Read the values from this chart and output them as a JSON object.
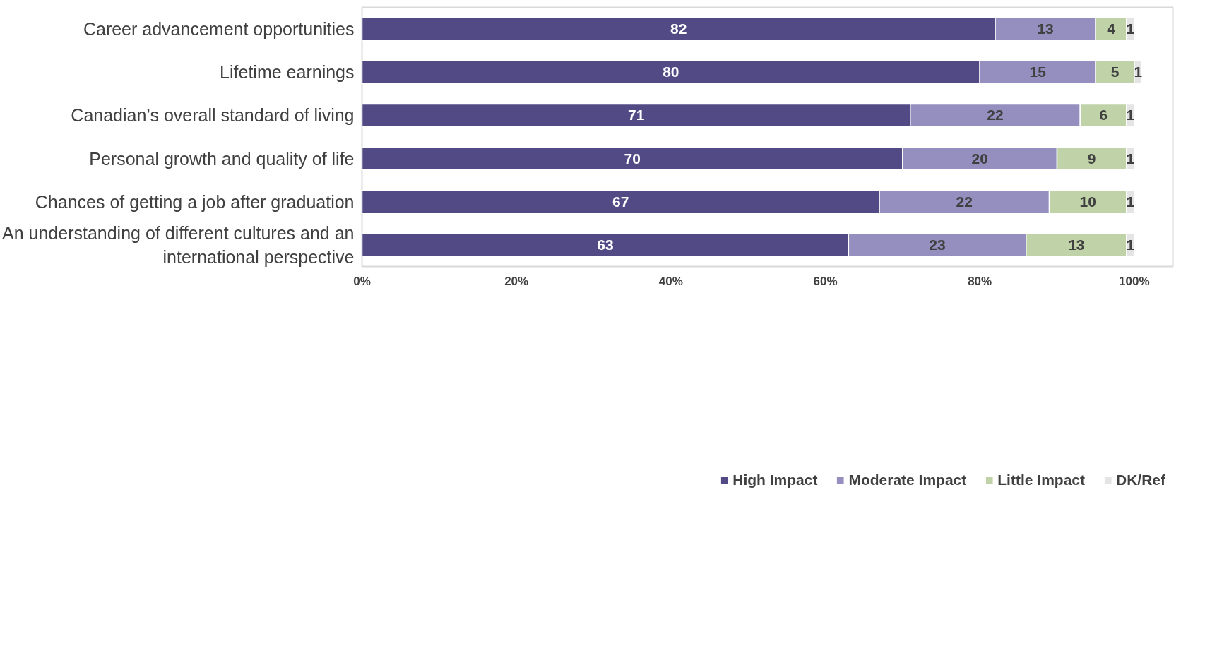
{
  "chart_data": {
    "type": "bar",
    "orientation": "horizontal",
    "stacked": true,
    "data_labels": true,
    "categories": [
      "Career advancement opportunities",
      "Lifetime earnings",
      "Canadian’s overall standard of living",
      "Personal growth and quality of life",
      "Chances of getting a job after graduation",
      "An understanding of different cultures and an international perspective"
    ],
    "series": [
      {
        "name": "High Impact",
        "color": "#524a85",
        "values": [
          82,
          80,
          71,
          70,
          67,
          63
        ]
      },
      {
        "name": "Moderate Impact",
        "color": "#958fc0",
        "values": [
          13,
          15,
          22,
          20,
          22,
          23
        ]
      },
      {
        "name": "Little Impact",
        "color": "#c0d3a8",
        "values": [
          4,
          5,
          6,
          9,
          10,
          13
        ]
      },
      {
        "name": "DK/Ref",
        "color": "#e4e4e4",
        "values": [
          1,
          1,
          1,
          1,
          1,
          1
        ]
      }
    ],
    "xlim": [
      0,
      105
    ],
    "xticks": [
      {
        "value": 0,
        "label": "0%"
      },
      {
        "value": 20,
        "label": "20%"
      },
      {
        "value": 40,
        "label": "40%"
      },
      {
        "value": 60,
        "label": "60%"
      },
      {
        "value": 80,
        "label": "80%"
      },
      {
        "value": 100,
        "label": "100%"
      }
    ],
    "grid": false,
    "legend": "bottom"
  }
}
